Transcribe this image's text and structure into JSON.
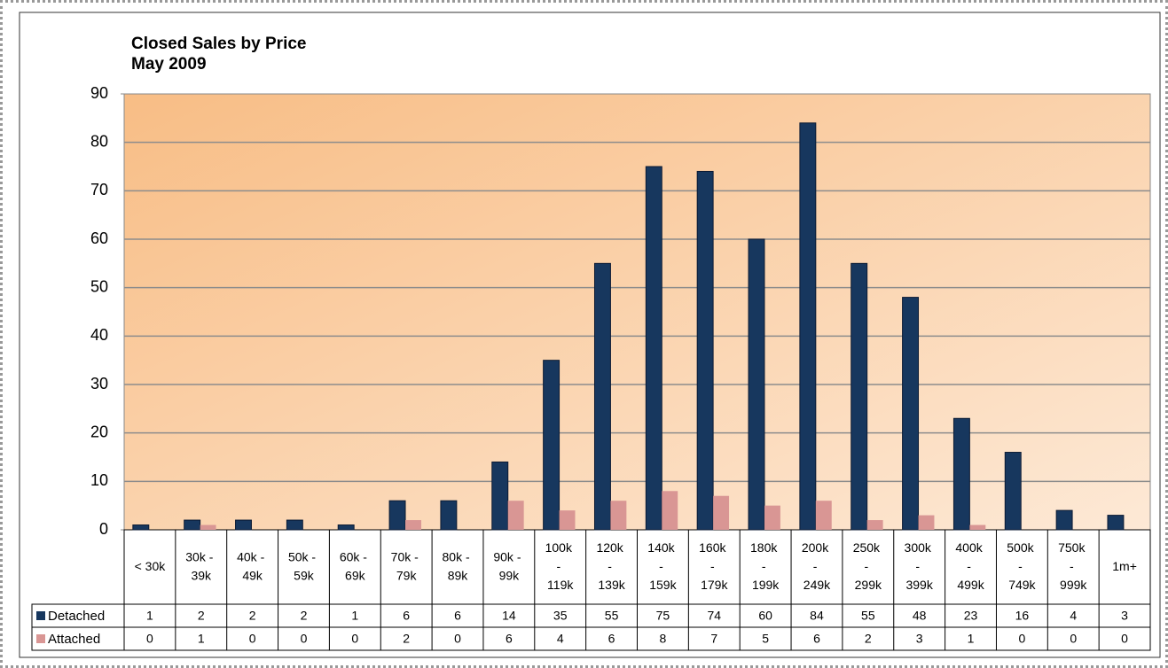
{
  "chart_data": {
    "type": "bar",
    "title": "Closed Sales by Price",
    "subtitle": "May 2009",
    "categories": [
      "< 30k",
      "30k - 39k",
      "40k - 49k",
      "50k - 59k",
      "60k - 69k",
      "70k - 79k",
      "80k - 89k",
      "90k - 99k",
      "100k - 119k",
      "120k - 139k",
      "140k - 159k",
      "160k - 179k",
      "180k - 199k",
      "200k - 249k",
      "250k - 299k",
      "300k - 399k",
      "400k - 499k",
      "500k - 749k",
      "750k - 999k",
      "1m+"
    ],
    "series": [
      {
        "name": "Detached",
        "color": "#17375e",
        "values": [
          1,
          2,
          2,
          2,
          1,
          6,
          6,
          14,
          35,
          55,
          75,
          74,
          60,
          84,
          55,
          48,
          23,
          16,
          4,
          3
        ]
      },
      {
        "name": "Attached",
        "color": "#d99694",
        "values": [
          0,
          1,
          0,
          0,
          0,
          2,
          0,
          6,
          4,
          6,
          8,
          7,
          5,
          6,
          2,
          3,
          1,
          0,
          0,
          0
        ]
      }
    ],
    "ylim": [
      0,
      90
    ],
    "yticks": [
      0,
      10,
      20,
      30,
      40,
      50,
      60,
      70,
      80,
      90
    ],
    "grid": true
  }
}
